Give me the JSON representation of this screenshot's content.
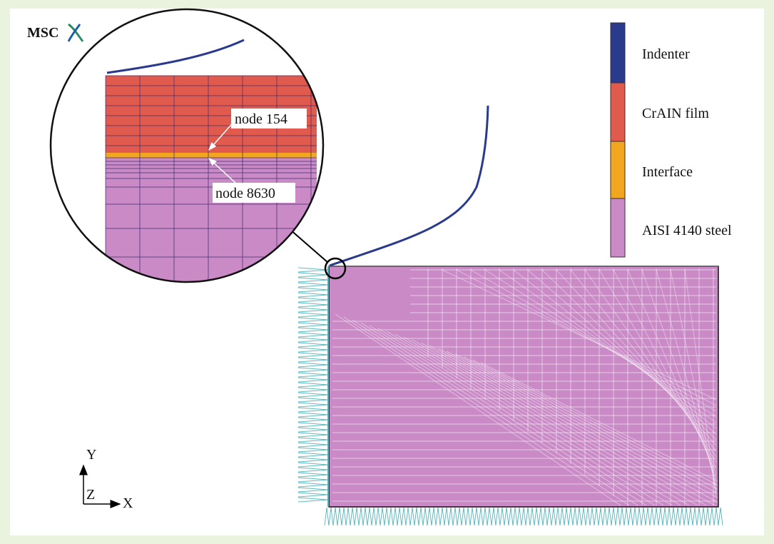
{
  "logo_text": "MSC",
  "legend": {
    "items": [
      {
        "label": "Indenter",
        "color": "#2a3a8c"
      },
      {
        "label": "CrAIN film",
        "color": "#e05a4e"
      },
      {
        "label": "Interface",
        "color": "#f2a51e"
      },
      {
        "label": "AISI 4140 steel",
        "color": "#c98ac6"
      }
    ]
  },
  "inset": {
    "node_upper": "node 154",
    "node_lower": "node 8630"
  },
  "axes": {
    "y": "Y",
    "z": "Z",
    "x": "X"
  },
  "colors": {
    "background": "#eaf3de",
    "mesh_line": "#ffffff",
    "boundary": "#4fb3b8",
    "grid_line": "#3a2a6a"
  }
}
